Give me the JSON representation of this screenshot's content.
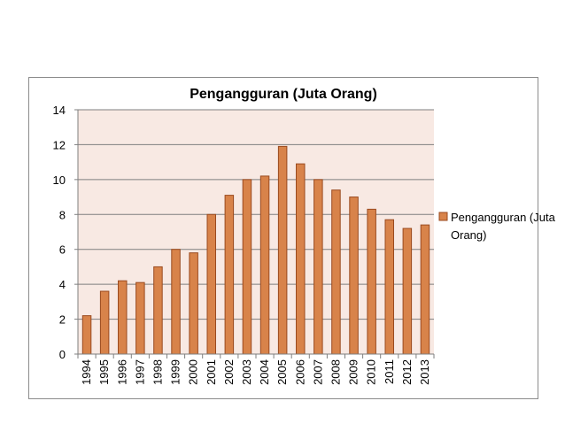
{
  "chart_data": {
    "type": "bar",
    "title": "Pengangguran (Juta Orang)",
    "xlabel": "",
    "ylabel": "",
    "ylim": [
      0,
      14
    ],
    "yticks": [
      0,
      2,
      4,
      6,
      8,
      10,
      12,
      14
    ],
    "grid": true,
    "legend_position": "right",
    "categories": [
      "1994",
      "1995",
      "1996",
      "1997",
      "1998",
      "1999",
      "2000",
      "2001",
      "2002",
      "2003",
      "2004",
      "2005",
      "2006",
      "2007",
      "2008",
      "2009",
      "2010",
      "2011",
      "2012",
      "2013"
    ],
    "series": [
      {
        "name": "Pengangguran (Juta Orang)",
        "legend_lines": [
          "Pengangguran (Juta",
          "Orang)"
        ],
        "color": "#d8834a",
        "values": [
          2.2,
          3.6,
          4.2,
          4.1,
          5.0,
          6.0,
          5.8,
          8.0,
          9.1,
          10.0,
          10.2,
          11.9,
          10.9,
          10.0,
          9.4,
          9.0,
          8.3,
          7.7,
          7.2,
          7.4
        ]
      }
    ],
    "plot_background": "#f8e9e3",
    "bar_edge_color": "#9a4a1f",
    "grid_color": "#7f7f7f"
  }
}
